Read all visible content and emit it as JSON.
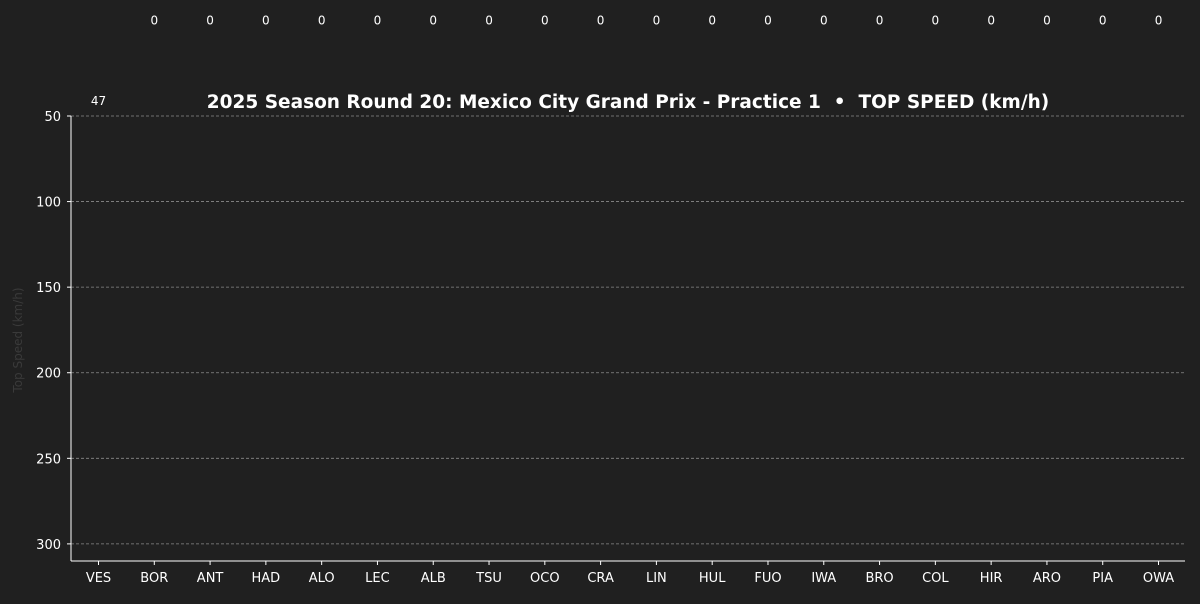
{
  "chart_data": {
    "type": "bar",
    "title": "2025 Season Round 20: Mexico City Grand Prix - Practice 1  •  TOP SPEED (km/h)",
    "xlabel": "",
    "ylabel": "Top Speed (km/h)",
    "categories": [
      "VES",
      "BOR",
      "ANT",
      "HAD",
      "ALO",
      "LEC",
      "ALB",
      "TSU",
      "OCO",
      "CRA",
      "LIN",
      "HUL",
      "FUO",
      "IWA",
      "BRO",
      "COL",
      "HIR",
      "ARO",
      "PIA",
      "OWA"
    ],
    "values": [
      47,
      0,
      0,
      0,
      0,
      0,
      0,
      0,
      0,
      0,
      0,
      0,
      0,
      0,
      0,
      0,
      0,
      0,
      0,
      0
    ],
    "value_labels": [
      "47",
      "0",
      "0",
      "0",
      "0",
      "0",
      "0",
      "0",
      "0",
      "0",
      "0",
      "0",
      "0",
      "0",
      "0",
      "0",
      "0",
      "0",
      "0",
      "0"
    ],
    "ylim": [
      310,
      50
    ],
    "yaxis_inverted": true,
    "yticks": [
      50,
      100,
      150,
      200,
      250,
      300
    ],
    "ytick_labels": [
      "50",
      "100",
      "150",
      "200",
      "250",
      "300"
    ],
    "grid": "horizontal-dashed",
    "legend": "none"
  },
  "colors": {
    "background": "#202020",
    "text": "#ffffff",
    "axis": "#ffffff",
    "grid": "#8a8a8a",
    "ylabel": "#3a3a3a"
  }
}
